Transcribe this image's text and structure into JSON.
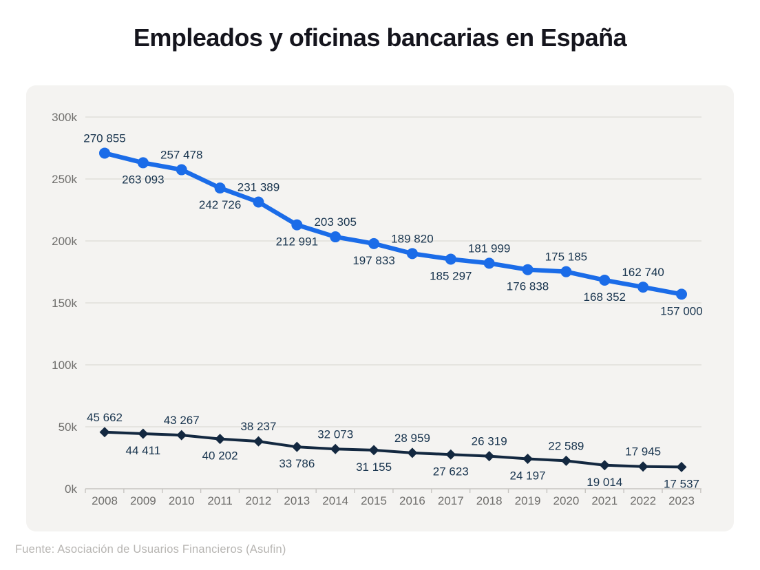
{
  "title": "Empleados y oficinas bancarias en España",
  "source_note": "Fuente: Asociación de Usuarios Financieros (Asufin)",
  "card_bg": "#f4f3f1",
  "chart_data": {
    "type": "line",
    "title": "Empleados y oficinas bancarias en España",
    "categories": [
      "2008",
      "2009",
      "2010",
      "2011",
      "2012",
      "2013",
      "2014",
      "2015",
      "2016",
      "2017",
      "2018",
      "2019",
      "2020",
      "2021",
      "2022",
      "2023"
    ],
    "series": [
      {
        "name": "Empleados",
        "color": "#1b6ce8",
        "marker": "circle",
        "values": [
          270855,
          263093,
          257478,
          242726,
          231389,
          212991,
          203305,
          197833,
          189820,
          185297,
          181999,
          176838,
          175185,
          168352,
          162740,
          157000
        ]
      },
      {
        "name": "Oficinas bancarias",
        "color": "#132840",
        "marker": "diamond",
        "values": [
          45662,
          44411,
          43267,
          40202,
          38237,
          33786,
          32073,
          31155,
          28959,
          27623,
          26319,
          24197,
          22589,
          19014,
          17945,
          17537
        ]
      }
    ],
    "yticks": [
      "0k",
      "50k",
      "100k",
      "150k",
      "200k",
      "250k",
      "300k"
    ],
    "ylim": [
      0,
      300000
    ],
    "grid": true,
    "legend": false,
    "data_labels": true,
    "label_color": "#18344e",
    "axis_text_color": "#6f6e6c",
    "grid_color": "#dcdad6",
    "axis_line_color": "#c6c4c1"
  }
}
